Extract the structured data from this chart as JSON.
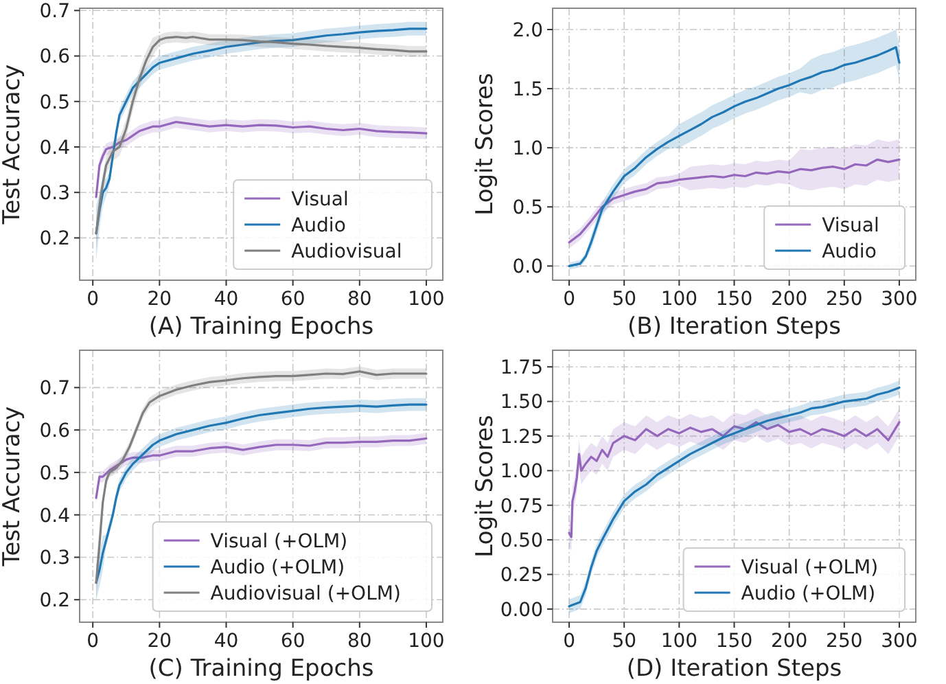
{
  "chart_data": [
    {
      "type": "line",
      "xlabel": "(A) Training Epochs",
      "ylabel": "Test Accuracy",
      "xlim": [
        -3.95,
        104.95
      ],
      "ylim": [
        0.107,
        0.705
      ],
      "xticks": [
        0,
        20,
        40,
        60,
        80,
        100
      ],
      "yticks": [
        0.2,
        0.3,
        0.4,
        0.5,
        0.6,
        0.7
      ],
      "grid": true,
      "legend": "bottom right",
      "series": [
        {
          "name": "Visual",
          "color": "#9467bd",
          "x": [
            1,
            2,
            3,
            4,
            6,
            8,
            10,
            12,
            14,
            16,
            18,
            20,
            25,
            30,
            35,
            40,
            45,
            50,
            55,
            60,
            65,
            70,
            75,
            80,
            85,
            90,
            95,
            100
          ],
          "values": [
            0.29,
            0.36,
            0.38,
            0.395,
            0.4,
            0.41,
            0.415,
            0.425,
            0.435,
            0.44,
            0.445,
            0.445,
            0.455,
            0.45,
            0.445,
            0.448,
            0.445,
            0.448,
            0.447,
            0.443,
            0.445,
            0.44,
            0.437,
            0.44,
            0.435,
            0.433,
            0.432,
            0.43
          ],
          "lower": [
            0.277,
            0.347,
            0.367,
            0.382,
            0.387,
            0.397,
            0.402,
            0.412,
            0.422,
            0.427,
            0.432,
            0.432,
            0.442,
            0.437,
            0.432,
            0.435,
            0.432,
            0.435,
            0.434,
            0.43,
            0.432,
            0.427,
            0.424,
            0.427,
            0.422,
            0.42,
            0.419,
            0.417
          ],
          "upper": [
            0.303,
            0.373,
            0.393,
            0.408,
            0.413,
            0.423,
            0.428,
            0.438,
            0.448,
            0.453,
            0.458,
            0.458,
            0.468,
            0.463,
            0.458,
            0.461,
            0.458,
            0.461,
            0.46,
            0.456,
            0.458,
            0.453,
            0.45,
            0.453,
            0.448,
            0.446,
            0.445,
            0.443
          ]
        },
        {
          "name": "Audio",
          "color": "#1f77b4",
          "x": [
            1,
            2,
            3,
            4,
            5,
            6,
            7,
            8,
            10,
            12,
            14,
            16,
            18,
            20,
            25,
            30,
            35,
            40,
            45,
            50,
            55,
            60,
            65,
            70,
            75,
            80,
            85,
            90,
            95,
            100
          ],
          "values": [
            0.21,
            0.26,
            0.3,
            0.31,
            0.33,
            0.38,
            0.43,
            0.47,
            0.5,
            0.53,
            0.545,
            0.56,
            0.575,
            0.585,
            0.595,
            0.605,
            0.612,
            0.62,
            0.625,
            0.63,
            0.633,
            0.635,
            0.64,
            0.645,
            0.648,
            0.652,
            0.655,
            0.657,
            0.66,
            0.66
          ],
          "lower": [
            0.15,
            0.22,
            0.27,
            0.29,
            0.315,
            0.365,
            0.415,
            0.455,
            0.485,
            0.515,
            0.53,
            0.545,
            0.56,
            0.57,
            0.58,
            0.59,
            0.597,
            0.605,
            0.61,
            0.615,
            0.618,
            0.62,
            0.625,
            0.63,
            0.633,
            0.637,
            0.64,
            0.642,
            0.645,
            0.645
          ],
          "upper": [
            0.27,
            0.3,
            0.33,
            0.33,
            0.345,
            0.395,
            0.445,
            0.485,
            0.515,
            0.545,
            0.56,
            0.575,
            0.59,
            0.6,
            0.61,
            0.62,
            0.627,
            0.635,
            0.64,
            0.645,
            0.648,
            0.65,
            0.655,
            0.66,
            0.663,
            0.667,
            0.67,
            0.672,
            0.675,
            0.675
          ]
        },
        {
          "name": "Audiovisual",
          "color": "#7f7f7f",
          "x": [
            1,
            2,
            3,
            4,
            6,
            8,
            10,
            12,
            14,
            16,
            18,
            20,
            22,
            25,
            28,
            30,
            35,
            40,
            45,
            50,
            55,
            60,
            65,
            70,
            75,
            80,
            85,
            90,
            95,
            100
          ],
          "values": [
            0.21,
            0.27,
            0.32,
            0.36,
            0.39,
            0.4,
            0.44,
            0.5,
            0.55,
            0.59,
            0.62,
            0.635,
            0.64,
            0.642,
            0.64,
            0.642,
            0.636,
            0.636,
            0.635,
            0.632,
            0.63,
            0.627,
            0.625,
            0.622,
            0.62,
            0.618,
            0.615,
            0.613,
            0.61,
            0.61
          ],
          "lower": [
            0.18,
            0.24,
            0.3,
            0.34,
            0.37,
            0.38,
            0.42,
            0.48,
            0.53,
            0.57,
            0.6,
            0.623,
            0.628,
            0.63,
            0.628,
            0.63,
            0.624,
            0.624,
            0.623,
            0.62,
            0.618,
            0.615,
            0.613,
            0.61,
            0.608,
            0.606,
            0.603,
            0.601,
            0.598,
            0.598
          ],
          "upper": [
            0.24,
            0.3,
            0.34,
            0.38,
            0.41,
            0.42,
            0.46,
            0.52,
            0.57,
            0.61,
            0.64,
            0.647,
            0.652,
            0.654,
            0.652,
            0.654,
            0.648,
            0.648,
            0.647,
            0.644,
            0.642,
            0.639,
            0.637,
            0.634,
            0.632,
            0.63,
            0.627,
            0.625,
            0.622,
            0.622
          ]
        }
      ]
    },
    {
      "type": "line",
      "xlabel": "(B) Iteration Steps",
      "ylabel": "Logit Scores",
      "xlim": [
        -15,
        315
      ],
      "ylim": [
        -0.12,
        2.18
      ],
      "xticks": [
        0,
        50,
        100,
        150,
        200,
        250,
        300
      ],
      "yticks": [
        {
          "value": 0,
          "label": "0.0"
        },
        {
          "value": 0.5,
          "label": "0.5"
        },
        {
          "value": 1,
          "label": "1.0"
        },
        {
          "value": 1.5,
          "label": "1.5"
        },
        {
          "value": 2,
          "label": "2.0"
        }
      ],
      "grid": true,
      "legend": "bottom right",
      "series": [
        {
          "name": "Visual",
          "color": "#9467bd",
          "x": [
            0,
            10,
            20,
            30,
            40,
            50,
            60,
            70,
            80,
            90,
            100,
            110,
            120,
            130,
            140,
            150,
            160,
            170,
            180,
            190,
            200,
            210,
            220,
            230,
            240,
            250,
            260,
            270,
            280,
            290,
            300
          ],
          "values": [
            0.2,
            0.27,
            0.38,
            0.5,
            0.57,
            0.6,
            0.63,
            0.65,
            0.7,
            0.71,
            0.73,
            0.74,
            0.75,
            0.76,
            0.75,
            0.77,
            0.76,
            0.79,
            0.78,
            0.8,
            0.79,
            0.82,
            0.81,
            0.83,
            0.84,
            0.82,
            0.86,
            0.85,
            0.9,
            0.88,
            0.9
          ],
          "lower": [
            0.15,
            0.22,
            0.33,
            0.45,
            0.52,
            0.55,
            0.58,
            0.6,
            0.65,
            0.66,
            0.68,
            0.64,
            0.65,
            0.66,
            0.65,
            0.67,
            0.66,
            0.69,
            0.68,
            0.7,
            0.69,
            0.65,
            0.64,
            0.66,
            0.67,
            0.65,
            0.69,
            0.68,
            0.73,
            0.71,
            0.73
          ],
          "upper": [
            0.25,
            0.32,
            0.43,
            0.55,
            0.62,
            0.65,
            0.68,
            0.7,
            0.75,
            0.76,
            0.78,
            0.84,
            0.85,
            0.86,
            0.85,
            0.87,
            0.86,
            0.89,
            0.88,
            0.9,
            0.89,
            0.99,
            0.98,
            1.0,
            1.01,
            0.99,
            1.03,
            1.02,
            1.07,
            1.05,
            1.07
          ]
        },
        {
          "name": "Audio",
          "color": "#1f77b4",
          "x": [
            0,
            10,
            15,
            20,
            25,
            30,
            40,
            50,
            60,
            70,
            80,
            90,
            100,
            110,
            120,
            130,
            140,
            150,
            160,
            170,
            180,
            190,
            200,
            210,
            220,
            230,
            240,
            250,
            260,
            270,
            280,
            290,
            297,
            300
          ],
          "values": [
            0,
            0.02,
            0.08,
            0.2,
            0.34,
            0.48,
            0.63,
            0.76,
            0.83,
            0.92,
            0.99,
            1.05,
            1.1,
            1.15,
            1.2,
            1.26,
            1.3,
            1.35,
            1.39,
            1.42,
            1.46,
            1.5,
            1.53,
            1.57,
            1.6,
            1.64,
            1.66,
            1.7,
            1.72,
            1.75,
            1.78,
            1.82,
            1.85,
            1.72
          ],
          "lower": [
            -0.03,
            -0.01,
            0.05,
            0.14,
            0.28,
            0.42,
            0.57,
            0.7,
            0.77,
            0.86,
            0.93,
            0.99,
            1.0,
            1.05,
            1.1,
            1.16,
            1.2,
            1.25,
            1.29,
            1.32,
            1.36,
            1.4,
            1.43,
            1.47,
            1.45,
            1.49,
            1.51,
            1.55,
            1.57,
            1.6,
            1.63,
            1.67,
            1.7,
            1.57
          ],
          "upper": [
            0.03,
            0.05,
            0.11,
            0.26,
            0.4,
            0.54,
            0.69,
            0.82,
            0.89,
            0.98,
            1.05,
            1.11,
            1.2,
            1.25,
            1.3,
            1.36,
            1.4,
            1.45,
            1.49,
            1.52,
            1.56,
            1.6,
            1.63,
            1.67,
            1.75,
            1.79,
            1.81,
            1.85,
            1.87,
            1.9,
            1.93,
            1.97,
            2.0,
            1.87
          ]
        }
      ]
    },
    {
      "type": "line",
      "xlabel": "(C) Training Epochs",
      "ylabel": "Test Accuracy",
      "xlim": [
        -3.95,
        104.95
      ],
      "ylim": [
        0.147,
        0.788
      ],
      "xticks": [
        0,
        20,
        40,
        60,
        80,
        100
      ],
      "yticks": [
        0.2,
        0.3,
        0.4,
        0.5,
        0.6,
        0.7
      ],
      "grid": true,
      "legend": "bottom right",
      "series": [
        {
          "name": "Visual (+OLM)",
          "color": "#9467bd",
          "x": [
            1,
            2,
            3,
            5,
            7,
            10,
            12,
            15,
            18,
            20,
            25,
            30,
            35,
            40,
            45,
            50,
            55,
            60,
            65,
            70,
            75,
            80,
            85,
            90,
            95,
            100
          ],
          "values": [
            0.44,
            0.49,
            0.49,
            0.505,
            0.515,
            0.53,
            0.535,
            0.535,
            0.54,
            0.54,
            0.55,
            0.55,
            0.557,
            0.56,
            0.553,
            0.56,
            0.565,
            0.565,
            0.563,
            0.57,
            0.57,
            0.572,
            0.572,
            0.575,
            0.575,
            0.58
          ],
          "lower": [
            0.427,
            0.477,
            0.477,
            0.492,
            0.502,
            0.517,
            0.522,
            0.522,
            0.527,
            0.527,
            0.537,
            0.537,
            0.544,
            0.547,
            0.54,
            0.547,
            0.552,
            0.552,
            0.55,
            0.557,
            0.557,
            0.559,
            0.559,
            0.562,
            0.562,
            0.567
          ],
          "upper": [
            0.453,
            0.503,
            0.503,
            0.518,
            0.528,
            0.543,
            0.548,
            0.548,
            0.553,
            0.553,
            0.563,
            0.563,
            0.57,
            0.573,
            0.566,
            0.573,
            0.578,
            0.578,
            0.576,
            0.583,
            0.583,
            0.585,
            0.585,
            0.588,
            0.588,
            0.593
          ]
        },
        {
          "name": "Audio (+OLM)",
          "color": "#1f77b4",
          "x": [
            1,
            2,
            3,
            4,
            5,
            6,
            7,
            8,
            10,
            12,
            14,
            16,
            18,
            20,
            25,
            30,
            35,
            40,
            45,
            50,
            55,
            60,
            65,
            70,
            75,
            80,
            85,
            90,
            95,
            100
          ],
          "values": [
            0.24,
            0.27,
            0.31,
            0.34,
            0.37,
            0.4,
            0.44,
            0.47,
            0.5,
            0.52,
            0.535,
            0.55,
            0.565,
            0.575,
            0.59,
            0.6,
            0.61,
            0.617,
            0.627,
            0.635,
            0.64,
            0.645,
            0.65,
            0.653,
            0.655,
            0.657,
            0.655,
            0.658,
            0.66,
            0.66
          ],
          "lower": [
            0.2,
            0.23,
            0.27,
            0.325,
            0.355,
            0.385,
            0.425,
            0.455,
            0.485,
            0.505,
            0.52,
            0.535,
            0.55,
            0.56,
            0.575,
            0.585,
            0.595,
            0.602,
            0.612,
            0.62,
            0.625,
            0.63,
            0.635,
            0.638,
            0.64,
            0.642,
            0.64,
            0.643,
            0.645,
            0.645
          ],
          "upper": [
            0.28,
            0.31,
            0.35,
            0.355,
            0.385,
            0.415,
            0.455,
            0.485,
            0.515,
            0.535,
            0.55,
            0.565,
            0.58,
            0.59,
            0.605,
            0.615,
            0.625,
            0.632,
            0.642,
            0.65,
            0.655,
            0.66,
            0.665,
            0.668,
            0.67,
            0.672,
            0.67,
            0.673,
            0.675,
            0.675
          ]
        },
        {
          "name": "Audiovisual (+OLM)",
          "color": "#7f7f7f",
          "x": [
            1,
            2,
            3,
            4,
            5,
            7,
            9,
            11,
            13,
            15,
            17,
            20,
            25,
            30,
            35,
            40,
            45,
            50,
            55,
            60,
            65,
            70,
            75,
            80,
            85,
            90,
            95,
            100
          ],
          "values": [
            0.24,
            0.33,
            0.43,
            0.48,
            0.5,
            0.51,
            0.53,
            0.56,
            0.6,
            0.64,
            0.665,
            0.68,
            0.695,
            0.705,
            0.713,
            0.717,
            0.722,
            0.725,
            0.727,
            0.727,
            0.73,
            0.733,
            0.732,
            0.738,
            0.73,
            0.733,
            0.733,
            0.733
          ],
          "lower": [
            0.2,
            0.29,
            0.418,
            0.468,
            0.488,
            0.498,
            0.518,
            0.548,
            0.588,
            0.628,
            0.653,
            0.668,
            0.683,
            0.693,
            0.701,
            0.705,
            0.71,
            0.713,
            0.715,
            0.715,
            0.718,
            0.721,
            0.72,
            0.726,
            0.718,
            0.721,
            0.721,
            0.721
          ],
          "upper": [
            0.28,
            0.37,
            0.442,
            0.492,
            0.512,
            0.522,
            0.542,
            0.572,
            0.612,
            0.652,
            0.677,
            0.692,
            0.707,
            0.717,
            0.725,
            0.729,
            0.734,
            0.737,
            0.739,
            0.739,
            0.742,
            0.745,
            0.744,
            0.75,
            0.742,
            0.745,
            0.745,
            0.745
          ]
        }
      ]
    },
    {
      "type": "line",
      "xlabel": "(D) Iteration Steps",
      "ylabel": "Logit Scores",
      "xlim": [
        -15,
        315
      ],
      "ylim": [
        -0.095,
        1.87
      ],
      "xticks": [
        0,
        50,
        100,
        150,
        200,
        250,
        300
      ],
      "yticks": [
        {
          "value": 0,
          "label": "0.00"
        },
        {
          "value": 0.25,
          "label": "0.25"
        },
        {
          "value": 0.5,
          "label": "0.50"
        },
        {
          "value": 0.75,
          "label": "0.75"
        },
        {
          "value": 1,
          "label": "1.00"
        },
        {
          "value": 1.25,
          "label": "1.25"
        },
        {
          "value": 1.5,
          "label": "1.50"
        },
        {
          "value": 1.75,
          "label": "1.75"
        }
      ],
      "grid": true,
      "legend": "bottom right",
      "series": [
        {
          "name": "Visual (+OLM)",
          "color": "#9467bd",
          "x": [
            0,
            2,
            3,
            5,
            7,
            9,
            11,
            15,
            20,
            25,
            30,
            35,
            40,
            50,
            60,
            70,
            80,
            90,
            100,
            110,
            120,
            130,
            140,
            150,
            160,
            170,
            180,
            190,
            200,
            210,
            220,
            230,
            240,
            250,
            260,
            270,
            280,
            290,
            300
          ],
          "values": [
            0.55,
            0.52,
            0.78,
            0.85,
            0.95,
            1.12,
            1.0,
            1.05,
            1.1,
            1.07,
            1.15,
            1.1,
            1.2,
            1.25,
            1.22,
            1.3,
            1.25,
            1.3,
            1.27,
            1.31,
            1.28,
            1.3,
            1.25,
            1.32,
            1.3,
            1.35,
            1.3,
            1.33,
            1.28,
            1.3,
            1.26,
            1.3,
            1.28,
            1.25,
            1.3,
            1.25,
            1.3,
            1.22,
            1.35
          ],
          "lower": [
            0.45,
            0.42,
            0.68,
            0.75,
            0.85,
            1.02,
            0.9,
            0.95,
            1.0,
            0.97,
            1.05,
            1.0,
            1.1,
            1.15,
            1.12,
            1.2,
            1.15,
            1.2,
            1.17,
            1.21,
            1.18,
            1.2,
            1.15,
            1.22,
            1.2,
            1.25,
            1.2,
            1.23,
            1.18,
            1.2,
            1.16,
            1.2,
            1.18,
            1.15,
            1.2,
            1.15,
            1.2,
            1.12,
            1.25
          ],
          "upper": [
            0.65,
            0.62,
            0.88,
            0.95,
            1.05,
            1.22,
            1.1,
            1.15,
            1.2,
            1.17,
            1.25,
            1.2,
            1.3,
            1.35,
            1.32,
            1.4,
            1.35,
            1.4,
            1.37,
            1.41,
            1.38,
            1.4,
            1.35,
            1.42,
            1.4,
            1.45,
            1.4,
            1.43,
            1.38,
            1.4,
            1.36,
            1.4,
            1.38,
            1.35,
            1.4,
            1.35,
            1.4,
            1.32,
            1.45
          ]
        },
        {
          "name": "Audio (+OLM)",
          "color": "#1f77b4",
          "x": [
            0,
            10,
            15,
            20,
            25,
            30,
            40,
            50,
            60,
            70,
            80,
            90,
            100,
            110,
            120,
            130,
            140,
            150,
            160,
            170,
            180,
            190,
            200,
            210,
            220,
            230,
            240,
            250,
            260,
            270,
            280,
            290,
            300
          ],
          "values": [
            0.02,
            0.05,
            0.15,
            0.3,
            0.42,
            0.5,
            0.65,
            0.78,
            0.85,
            0.9,
            0.97,
            1.02,
            1.07,
            1.12,
            1.16,
            1.2,
            1.24,
            1.27,
            1.3,
            1.33,
            1.36,
            1.38,
            1.4,
            1.42,
            1.45,
            1.46,
            1.48,
            1.5,
            1.51,
            1.52,
            1.55,
            1.57,
            1.6
          ],
          "lower": [
            -0.03,
            0,
            0.1,
            0.25,
            0.37,
            0.45,
            0.6,
            0.73,
            0.8,
            0.85,
            0.92,
            0.97,
            1.02,
            1.07,
            1.11,
            1.15,
            1.19,
            1.22,
            1.25,
            1.28,
            1.31,
            1.33,
            1.35,
            1.37,
            1.4,
            1.41,
            1.43,
            1.45,
            1.46,
            1.47,
            1.5,
            1.52,
            1.55
          ],
          "upper": [
            0.07,
            0.1,
            0.2,
            0.35,
            0.47,
            0.55,
            0.7,
            0.83,
            0.9,
            0.95,
            1.02,
            1.07,
            1.12,
            1.17,
            1.21,
            1.25,
            1.29,
            1.32,
            1.35,
            1.38,
            1.41,
            1.43,
            1.45,
            1.47,
            1.5,
            1.51,
            1.53,
            1.55,
            1.56,
            1.57,
            1.6,
            1.62,
            1.65
          ]
        }
      ]
    }
  ]
}
